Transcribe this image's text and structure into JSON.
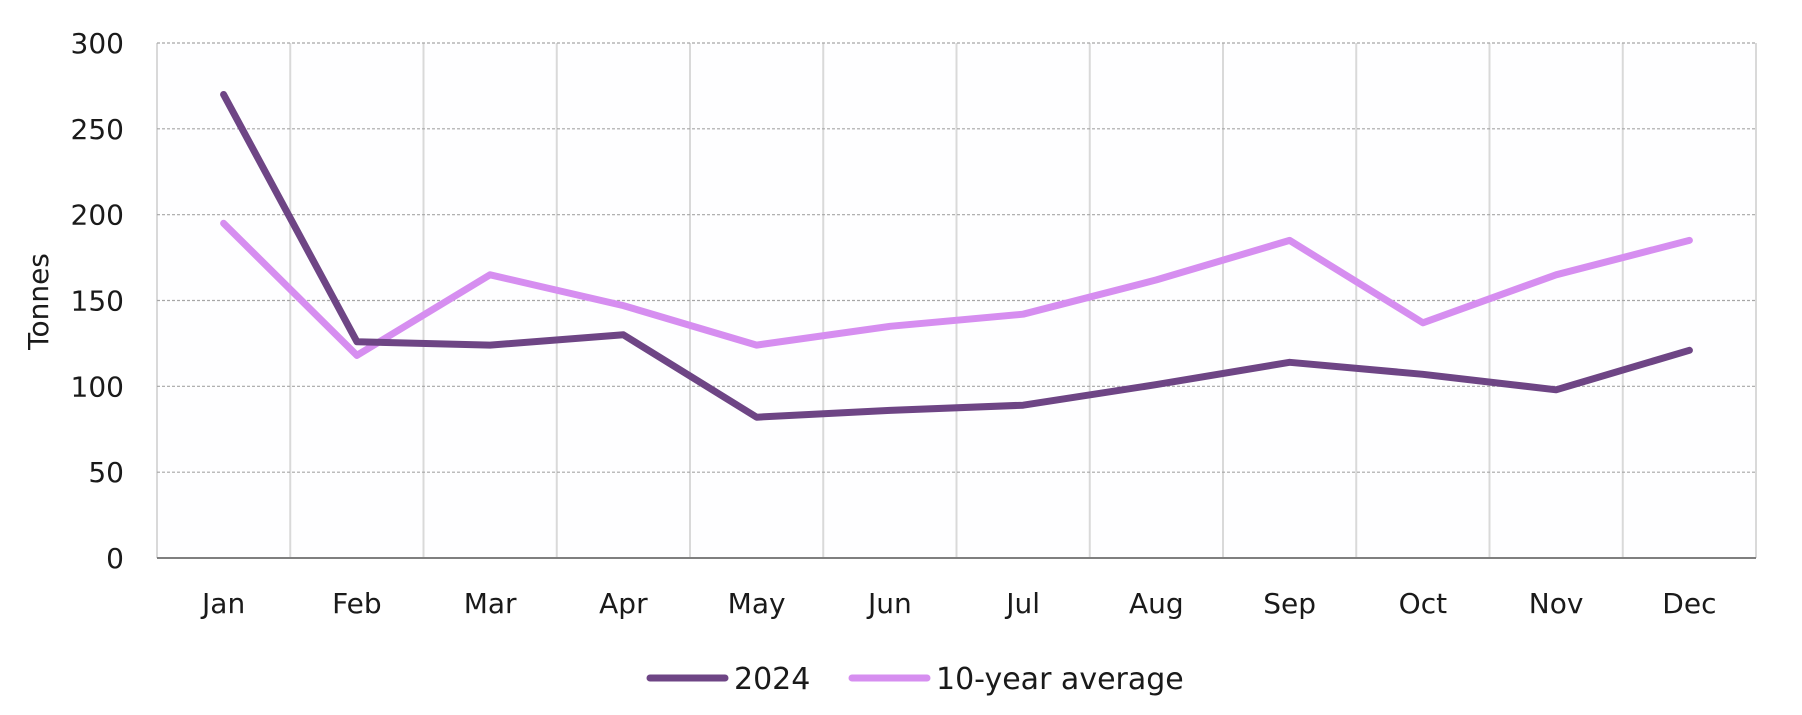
{
  "chart_data": {
    "type": "line",
    "categories": [
      "Jan",
      "Feb",
      "Mar",
      "Apr",
      "May",
      "Jun",
      "Jul",
      "Aug",
      "Sep",
      "Oct",
      "Nov",
      "Dec"
    ],
    "series": [
      {
        "name": "2024",
        "values": [
          270,
          126,
          124,
          130,
          82,
          86,
          89,
          101,
          114,
          107,
          98,
          121
        ],
        "color": "#6e4585"
      },
      {
        "name": "10-year average",
        "values": [
          195,
          118,
          165,
          147,
          124,
          135,
          142,
          162,
          185,
          137,
          165,
          185
        ],
        "color": "#d68ef0"
      }
    ],
    "title": "",
    "xlabel": "",
    "ylabel": "Tonnes",
    "ylim": [
      0,
      300
    ],
    "yticks": [
      0,
      50,
      100,
      150,
      200,
      250,
      300
    ],
    "grid": {
      "horizontal": "dotted",
      "vertical": "solid"
    },
    "legend_position": "bottom-center"
  }
}
